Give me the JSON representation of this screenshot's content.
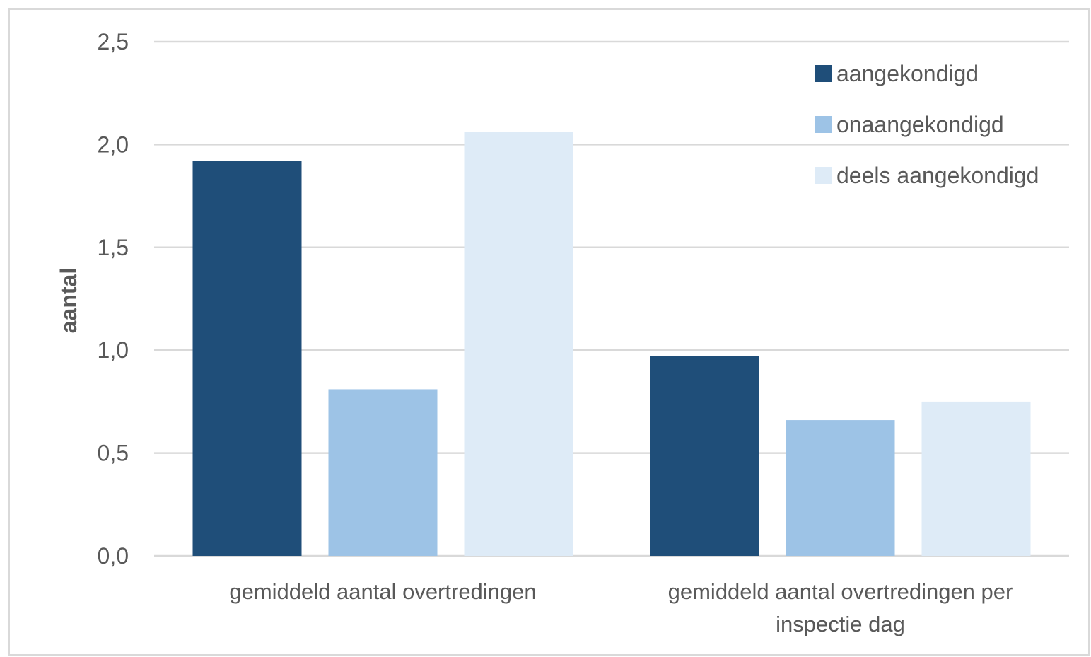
{
  "chart_data": {
    "type": "bar",
    "title": "",
    "ylabel": "aantal",
    "xlabel": "",
    "ylim": [
      0,
      2.5
    ],
    "yticks": [
      "0,0",
      "0,5",
      "1,0",
      "1,5",
      "2,0",
      "2,5"
    ],
    "ytick_values": [
      0,
      0.5,
      1.0,
      1.5,
      2.0,
      2.5
    ],
    "grid": true,
    "legend_position": "top-right",
    "categories": [
      [
        "gemiddeld aantal overtredingen"
      ],
      [
        "gemiddeld aantal overtredingen per",
        "inspectie dag"
      ]
    ],
    "series": [
      {
        "name": "aangekondigd",
        "color": "#1f4e79",
        "values": [
          1.92,
          0.97
        ]
      },
      {
        "name": "onaangekondigd",
        "color": "#9dc3e6",
        "values": [
          0.81,
          0.66
        ]
      },
      {
        "name": "deels aangekondigd",
        "color": "#deebf7",
        "values": [
          2.06,
          0.75
        ]
      }
    ]
  }
}
